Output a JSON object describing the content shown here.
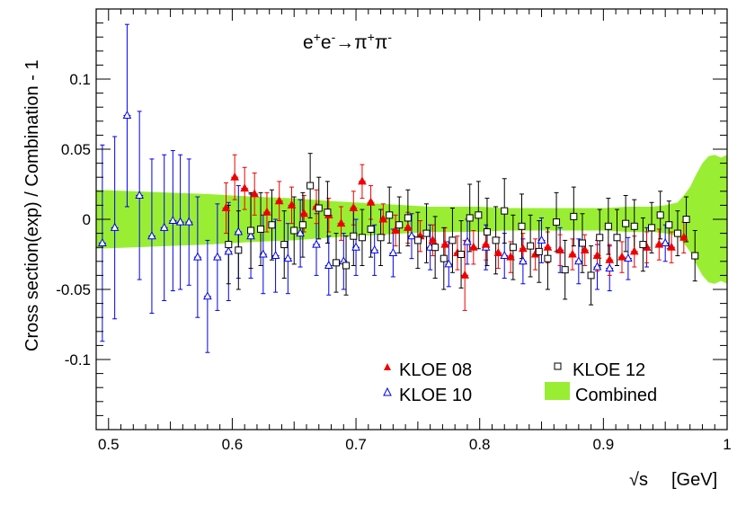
{
  "chart_data": {
    "type": "scatter",
    "title": "",
    "process": {
      "base": "e",
      "sup1": "+",
      "e2": "e",
      "sup2": "-",
      "arrow": "→",
      "pi1": "π",
      "sup3": "+",
      "pi2": "π",
      "sup4": "-"
    },
    "ylabel": "Cross section(exp) / Combination - 1",
    "xlabel_sqrt": "√s",
    "xlabel_unit": "[GeV]",
    "xlim": [
      0.49,
      1.0
    ],
    "ylim": [
      -0.15,
      0.15
    ],
    "x_ticks": [
      {
        "v": 0.5,
        "label": "0.5"
      },
      {
        "v": 0.6,
        "label": "0.6"
      },
      {
        "v": 0.7,
        "label": "0.7"
      },
      {
        "v": 0.8,
        "label": "0.8"
      },
      {
        "v": 0.9,
        "label": "0.9"
      },
      {
        "v": 1.0,
        "label": "1"
      }
    ],
    "y_ticks": [
      {
        "v": -0.1,
        "label": "-0.1"
      },
      {
        "v": -0.05,
        "label": "-0.05"
      },
      {
        "v": 0,
        "label": "0"
      },
      {
        "v": 0.05,
        "label": "0.05"
      },
      {
        "v": 0.1,
        "label": "0.1"
      }
    ],
    "grid": false,
    "legend_position": "bottom-right",
    "legend": [
      {
        "key": "kloe08",
        "label": "KLOE 08"
      },
      {
        "key": "kloe12",
        "label": "KLOE 12"
      },
      {
        "key": "kloe10",
        "label": "KLOE 10"
      },
      {
        "key": "combined",
        "label": "Combined"
      }
    ],
    "band": {
      "key": "combined",
      "color": "#99ee33",
      "x": [
        0.49,
        0.52,
        0.55,
        0.58,
        0.6,
        0.62,
        0.65,
        0.68,
        0.7,
        0.72,
        0.74,
        0.76,
        0.78,
        0.8,
        0.82,
        0.84,
        0.86,
        0.88,
        0.9,
        0.92,
        0.94,
        0.95,
        0.96,
        0.965,
        0.97,
        0.975,
        0.98,
        0.985,
        0.99,
        0.995,
        1.0
      ],
      "half_width": [
        0.021,
        0.02,
        0.019,
        0.018,
        0.017,
        0.016,
        0.015,
        0.013,
        0.012,
        0.011,
        0.01,
        0.009,
        0.009,
        0.009,
        0.008,
        0.008,
        0.008,
        0.008,
        0.008,
        0.009,
        0.009,
        0.01,
        0.012,
        0.017,
        0.023,
        0.032,
        0.04,
        0.045,
        0.046,
        0.044,
        0.046
      ]
    },
    "series": [
      {
        "key": "kloe10",
        "color": "#0000ee",
        "marker": "triangle-open",
        "points": [
          {
            "x": 0.495,
            "y": -0.017,
            "err": 0.07
          },
          {
            "x": 0.505,
            "y": -0.006,
            "err": 0.065
          },
          {
            "x": 0.515,
            "y": 0.074,
            "err": 0.065
          },
          {
            "x": 0.525,
            "y": 0.017,
            "err": 0.06
          },
          {
            "x": 0.535,
            "y": -0.012,
            "err": 0.055
          },
          {
            "x": 0.545,
            "y": -0.006,
            "err": 0.052
          },
          {
            "x": 0.552,
            "y": -0.001,
            "err": 0.05
          },
          {
            "x": 0.558,
            "y": -0.002,
            "err": 0.048
          },
          {
            "x": 0.565,
            "y": -0.002,
            "err": 0.045
          },
          {
            "x": 0.572,
            "y": -0.027,
            "err": 0.043
          },
          {
            "x": 0.58,
            "y": -0.055,
            "err": 0.04
          },
          {
            "x": 0.588,
            "y": -0.027,
            "err": 0.038
          },
          {
            "x": 0.597,
            "y": -0.023,
            "err": 0.035
          },
          {
            "x": 0.605,
            "y": -0.009,
            "err": 0.033
          },
          {
            "x": 0.615,
            "y": -0.012,
            "err": 0.03
          },
          {
            "x": 0.625,
            "y": -0.025,
            "err": 0.028
          },
          {
            "x": 0.635,
            "y": -0.026,
            "err": 0.026
          },
          {
            "x": 0.645,
            "y": -0.028,
            "err": 0.025
          },
          {
            "x": 0.655,
            "y": -0.01,
            "err": 0.024
          },
          {
            "x": 0.668,
            "y": -0.018,
            "err": 0.022
          },
          {
            "x": 0.678,
            "y": -0.033,
            "err": 0.021
          },
          {
            "x": 0.69,
            "y": -0.03,
            "err": 0.02
          },
          {
            "x": 0.7,
            "y": -0.02,
            "err": 0.02
          },
          {
            "x": 0.715,
            "y": -0.022,
            "err": 0.018
          },
          {
            "x": 0.73,
            "y": -0.024,
            "err": 0.017
          },
          {
            "x": 0.745,
            "y": -0.012,
            "err": 0.016
          },
          {
            "x": 0.76,
            "y": -0.02,
            "err": 0.016
          },
          {
            "x": 0.775,
            "y": -0.032,
            "err": 0.016
          },
          {
            "x": 0.79,
            "y": -0.016,
            "err": 0.016
          },
          {
            "x": 0.805,
            "y": -0.02,
            "err": 0.016
          },
          {
            "x": 0.82,
            "y": -0.026,
            "err": 0.016
          },
          {
            "x": 0.835,
            "y": -0.03,
            "err": 0.016
          },
          {
            "x": 0.85,
            "y": -0.015,
            "err": 0.016
          },
          {
            "x": 0.865,
            "y": -0.022,
            "err": 0.016
          },
          {
            "x": 0.88,
            "y": -0.03,
            "err": 0.016
          },
          {
            "x": 0.895,
            "y": -0.034,
            "err": 0.016
          },
          {
            "x": 0.905,
            "y": -0.035,
            "err": 0.016
          },
          {
            "x": 0.92,
            "y": -0.028,
            "err": 0.015
          },
          {
            "x": 0.935,
            "y": -0.02,
            "err": 0.014
          },
          {
            "x": 0.95,
            "y": -0.017,
            "err": 0.013
          }
        ]
      },
      {
        "key": "kloe08",
        "color": "#ee0000",
        "marker": "triangle-filled",
        "points": [
          {
            "x": 0.595,
            "y": 0.008,
            "err": 0.018
          },
          {
            "x": 0.602,
            "y": 0.03,
            "err": 0.016
          },
          {
            "x": 0.61,
            "y": 0.022,
            "err": 0.015
          },
          {
            "x": 0.618,
            "y": 0.018,
            "err": 0.015
          },
          {
            "x": 0.628,
            "y": 0.005,
            "err": 0.014
          },
          {
            "x": 0.638,
            "y": 0.013,
            "err": 0.014
          },
          {
            "x": 0.648,
            "y": 0.01,
            "err": 0.013
          },
          {
            "x": 0.658,
            "y": 0.004,
            "err": 0.013
          },
          {
            "x": 0.668,
            "y": 0.009,
            "err": 0.012
          },
          {
            "x": 0.678,
            "y": 0.003,
            "err": 0.012
          },
          {
            "x": 0.688,
            "y": -0.003,
            "err": 0.012
          },
          {
            "x": 0.698,
            "y": 0.008,
            "err": 0.012
          },
          {
            "x": 0.705,
            "y": 0.027,
            "err": 0.012
          },
          {
            "x": 0.712,
            "y": 0.012,
            "err": 0.012
          },
          {
            "x": 0.722,
            "y": 0.0,
            "err": 0.011
          },
          {
            "x": 0.732,
            "y": -0.008,
            "err": 0.011
          },
          {
            "x": 0.742,
            "y": -0.006,
            "err": 0.011
          },
          {
            "x": 0.752,
            "y": -0.012,
            "err": 0.011
          },
          {
            "x": 0.762,
            "y": -0.015,
            "err": 0.011
          },
          {
            "x": 0.772,
            "y": -0.018,
            "err": 0.012
          },
          {
            "x": 0.782,
            "y": -0.024,
            "err": 0.012
          },
          {
            "x": 0.788,
            "y": -0.04,
            "err": 0.025
          },
          {
            "x": 0.795,
            "y": -0.02,
            "err": 0.012
          },
          {
            "x": 0.805,
            "y": -0.018,
            "err": 0.011
          },
          {
            "x": 0.815,
            "y": -0.024,
            "err": 0.011
          },
          {
            "x": 0.825,
            "y": -0.027,
            "err": 0.011
          },
          {
            "x": 0.835,
            "y": -0.021,
            "err": 0.011
          },
          {
            "x": 0.845,
            "y": -0.025,
            "err": 0.011
          },
          {
            "x": 0.855,
            "y": -0.02,
            "err": 0.011
          },
          {
            "x": 0.865,
            "y": -0.022,
            "err": 0.011
          },
          {
            "x": 0.875,
            "y": -0.025,
            "err": 0.011
          },
          {
            "x": 0.885,
            "y": -0.022,
            "err": 0.011
          },
          {
            "x": 0.895,
            "y": -0.026,
            "err": 0.011
          },
          {
            "x": 0.905,
            "y": -0.029,
            "err": 0.011
          },
          {
            "x": 0.915,
            "y": -0.027,
            "err": 0.011
          },
          {
            "x": 0.925,
            "y": -0.023,
            "err": 0.011
          },
          {
            "x": 0.935,
            "y": -0.02,
            "err": 0.011
          },
          {
            "x": 0.945,
            "y": -0.018,
            "err": 0.011
          },
          {
            "x": 0.955,
            "y": -0.02,
            "err": 0.011
          },
          {
            "x": 0.965,
            "y": -0.013,
            "err": 0.011
          }
        ]
      },
      {
        "key": "kloe12",
        "color": "#000000",
        "marker": "square-open",
        "points": [
          {
            "x": 0.597,
            "y": -0.018,
            "err": 0.028
          },
          {
            "x": 0.605,
            "y": -0.022,
            "err": 0.028
          },
          {
            "x": 0.615,
            "y": -0.008,
            "err": 0.027
          },
          {
            "x": 0.623,
            "y": -0.007,
            "err": 0.026
          },
          {
            "x": 0.632,
            "y": -0.004,
            "err": 0.025
          },
          {
            "x": 0.642,
            "y": -0.018,
            "err": 0.024
          },
          {
            "x": 0.65,
            "y": -0.008,
            "err": 0.024
          },
          {
            "x": 0.657,
            "y": -0.004,
            "err": 0.023
          },
          {
            "x": 0.663,
            "y": 0.024,
            "err": 0.023
          },
          {
            "x": 0.67,
            "y": 0.008,
            "err": 0.022
          },
          {
            "x": 0.677,
            "y": 0.005,
            "err": 0.022
          },
          {
            "x": 0.684,
            "y": -0.031,
            "err": 0.021
          },
          {
            "x": 0.692,
            "y": -0.033,
            "err": 0.021
          },
          {
            "x": 0.698,
            "y": -0.012,
            "err": 0.021
          },
          {
            "x": 0.705,
            "y": -0.013,
            "err": 0.02
          },
          {
            "x": 0.712,
            "y": -0.007,
            "err": 0.02
          },
          {
            "x": 0.72,
            "y": -0.013,
            "err": 0.02
          },
          {
            "x": 0.727,
            "y": 0.003,
            "err": 0.02
          },
          {
            "x": 0.735,
            "y": -0.004,
            "err": 0.02
          },
          {
            "x": 0.742,
            "y": 0.001,
            "err": 0.02
          },
          {
            "x": 0.75,
            "y": -0.015,
            "err": 0.02
          },
          {
            "x": 0.757,
            "y": -0.01,
            "err": 0.021
          },
          {
            "x": 0.764,
            "y": -0.02,
            "err": 0.022
          },
          {
            "x": 0.771,
            "y": -0.028,
            "err": 0.022
          },
          {
            "x": 0.778,
            "y": -0.015,
            "err": 0.023
          },
          {
            "x": 0.785,
            "y": -0.025,
            "err": 0.024
          },
          {
            "x": 0.792,
            "y": 0.001,
            "err": 0.024
          },
          {
            "x": 0.799,
            "y": 0.003,
            "err": 0.024
          },
          {
            "x": 0.806,
            "y": -0.009,
            "err": 0.024
          },
          {
            "x": 0.813,
            "y": -0.015,
            "err": 0.024
          },
          {
            "x": 0.82,
            "y": 0.006,
            "err": 0.023
          },
          {
            "x": 0.827,
            "y": -0.02,
            "err": 0.023
          },
          {
            "x": 0.834,
            "y": -0.005,
            "err": 0.023
          },
          {
            "x": 0.841,
            "y": -0.019,
            "err": 0.022
          },
          {
            "x": 0.848,
            "y": -0.023,
            "err": 0.022
          },
          {
            "x": 0.855,
            "y": -0.028,
            "err": 0.022
          },
          {
            "x": 0.862,
            "y": -0.002,
            "err": 0.021
          },
          {
            "x": 0.869,
            "y": -0.036,
            "err": 0.021
          },
          {
            "x": 0.876,
            "y": 0.002,
            "err": 0.021
          },
          {
            "x": 0.883,
            "y": -0.017,
            "err": 0.021
          },
          {
            "x": 0.89,
            "y": -0.04,
            "err": 0.021
          },
          {
            "x": 0.897,
            "y": -0.013,
            "err": 0.02
          },
          {
            "x": 0.904,
            "y": -0.005,
            "err": 0.02
          },
          {
            "x": 0.911,
            "y": -0.013,
            "err": 0.02
          },
          {
            "x": 0.918,
            "y": -0.003,
            "err": 0.02
          },
          {
            "x": 0.925,
            "y": -0.005,
            "err": 0.019
          },
          {
            "x": 0.932,
            "y": -0.018,
            "err": 0.019
          },
          {
            "x": 0.939,
            "y": -0.006,
            "err": 0.018
          },
          {
            "x": 0.946,
            "y": 0.003,
            "err": 0.017
          },
          {
            "x": 0.953,
            "y": -0.004,
            "err": 0.017
          },
          {
            "x": 0.96,
            "y": -0.01,
            "err": 0.016
          },
          {
            "x": 0.967,
            "y": 0.0,
            "err": 0.016
          },
          {
            "x": 0.974,
            "y": -0.026,
            "err": 0.018
          }
        ]
      }
    ]
  }
}
